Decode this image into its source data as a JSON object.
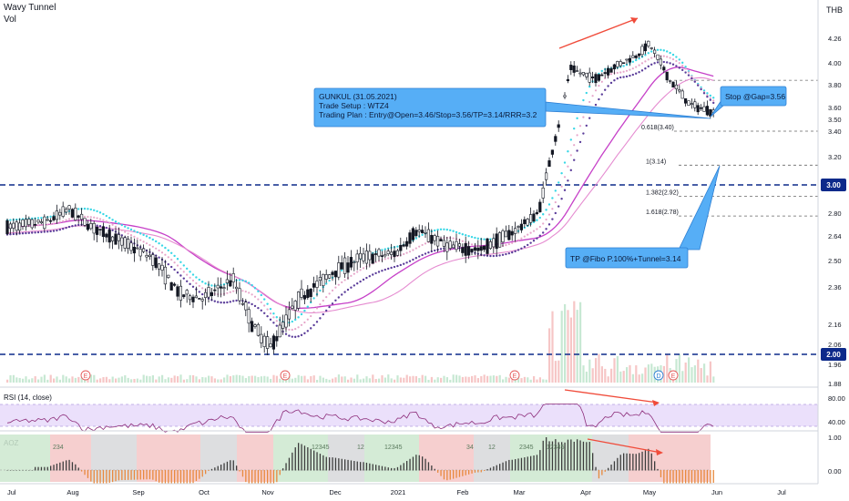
{
  "header": {
    "indicator": "Wavy Tunnel",
    "volume_label": "Vol",
    "currency": "THB"
  },
  "chart_data": {
    "type": "candlestick",
    "title": "",
    "x_ticks": [
      "Jul",
      "Aug",
      "Sep",
      "Oct",
      "Nov",
      "Dec",
      "2021",
      "Feb",
      "Mar",
      "Apr",
      "May",
      "Jun",
      "Jul"
    ],
    "y_ticks": [
      "4.26",
      "4.00",
      "3.80",
      "3.60",
      "3.50",
      "3.40",
      "3.20",
      "3.00",
      "2.80",
      "2.64",
      "2.50",
      "2.36",
      "2.16",
      "2.06",
      "2.00",
      "1.96",
      "1.88"
    ],
    "ylim": [
      1.88,
      4.4
    ],
    "price_anchors": [
      {
        "date": "2020-07-01",
        "close": 2.7
      },
      {
        "date": "2020-07-20",
        "close": 2.74
      },
      {
        "date": "2020-07-30",
        "close": 2.83
      },
      {
        "date": "2020-08-10",
        "close": 2.7
      },
      {
        "date": "2020-08-25",
        "close": 2.6
      },
      {
        "date": "2020-09-07",
        "close": 2.52
      },
      {
        "date": "2020-09-20",
        "close": 2.32
      },
      {
        "date": "2020-10-01",
        "close": 2.3
      },
      {
        "date": "2020-10-15",
        "close": 2.4
      },
      {
        "date": "2020-10-25",
        "close": 2.15
      },
      {
        "date": "2020-11-02",
        "close": 2.04
      },
      {
        "date": "2020-11-15",
        "close": 2.3
      },
      {
        "date": "2020-11-30",
        "close": 2.44
      },
      {
        "date": "2020-12-15",
        "close": 2.52
      },
      {
        "date": "2020-12-31",
        "close": 2.54
      },
      {
        "date": "2021-01-10",
        "close": 2.68
      },
      {
        "date": "2021-01-25",
        "close": 2.58
      },
      {
        "date": "2021-02-10",
        "close": 2.56
      },
      {
        "date": "2021-02-25",
        "close": 2.66
      },
      {
        "date": "2021-03-10",
        "close": 2.8
      },
      {
        "date": "2021-03-20",
        "close": 3.5
      },
      {
        "date": "2021-03-25",
        "close": 3.95
      },
      {
        "date": "2021-04-05",
        "close": 3.85
      },
      {
        "date": "2021-04-15",
        "close": 3.97
      },
      {
        "date": "2021-04-25",
        "close": 4.08
      },
      {
        "date": "2021-05-01",
        "close": 4.2
      },
      {
        "date": "2021-05-10",
        "close": 3.85
      },
      {
        "date": "2021-05-20",
        "close": 3.62
      },
      {
        "date": "2021-05-31",
        "close": 3.56
      }
    ],
    "horizontal_levels": [
      {
        "value": 3.0,
        "label": "3.00",
        "style": "dashed",
        "color": "#0d2a8a"
      },
      {
        "value": 2.0,
        "label": "2.00",
        "style": "dashed",
        "color": "#0d2a8a"
      }
    ],
    "fibonacci": [
      {
        "level": "0.618",
        "price": 3.4,
        "text": "0.618(3.40)"
      },
      {
        "level": "1",
        "price": 3.14,
        "text": "1(3.14)"
      },
      {
        "level": "1.382",
        "price": 2.92,
        "text": "1.382(2.92)"
      },
      {
        "level": "1.618",
        "price": 2.78,
        "text": "1.618(2.78)"
      }
    ],
    "annotations": [
      {
        "id": "setup",
        "lines": [
          "GUNKUL (31.05.2021)",
          "Trade Setup : WTZ4",
          "Trading Plan : Entry@Open=3.46/Stop=3.56/TP=3.14/RRR=3.2"
        ]
      },
      {
        "id": "stop",
        "lines": [
          "Stop @Gap=3.56"
        ]
      },
      {
        "id": "tp",
        "lines": [
          "TP @Fibo P.100%+Tunnel=3.14"
        ]
      }
    ],
    "markers": [
      "E",
      "E",
      "E",
      "D",
      "E"
    ],
    "rsi": {
      "label": "RSI (14, close)",
      "ticks": [
        "80.00",
        "40.00"
      ],
      "band": [
        40,
        70
      ]
    },
    "aoz": {
      "label": "AOZ",
      "ticks": [
        "1.00",
        "0.00"
      ],
      "labels": [
        "234",
        "12345",
        "12",
        "12345",
        "34",
        "12",
        "2345",
        "12345"
      ]
    }
  },
  "colors": {
    "up_candle": "#ffffff",
    "down_candle": "#131722",
    "tunnel_cyan": "#37d7e6",
    "tunnel_purple": "#5b3d9a",
    "tunnel_pink": "#e6a5c9",
    "ma_magenta": "#c640c8",
    "callout_fill": "#56aef6",
    "callout_border": "#2d7fd3",
    "arrow_red": "#f04b3a",
    "level_blue": "#0d2a8a",
    "rsi_line": "#8c2c7a",
    "rsi_band": "#ebe0fb"
  }
}
